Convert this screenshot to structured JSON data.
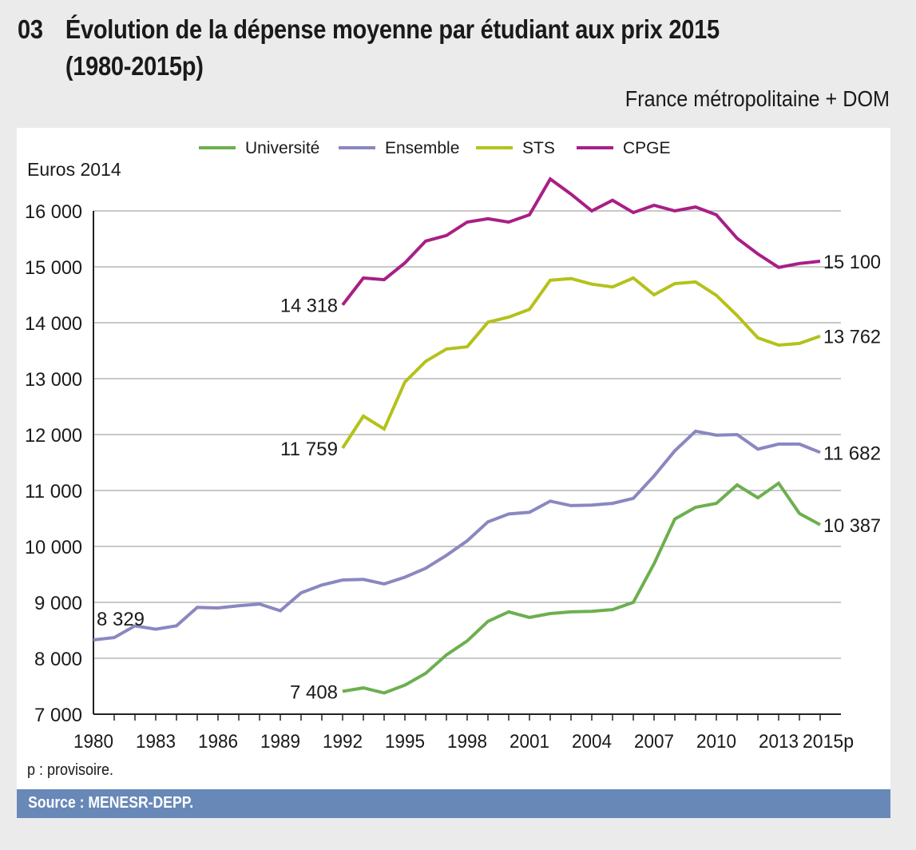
{
  "header": {
    "figure_number": "03",
    "title_line1": "Évolution de la dépense moyenne par étudiant aux prix 2015",
    "title_line2": "(1980-2015p)",
    "subtitle": "France métropolitaine + DOM"
  },
  "footer": {
    "note": "p : provisoire.",
    "source": "Source : MENESR-DEPP."
  },
  "chart_data": {
    "type": "line",
    "title": "Évolution de la dépense moyenne par étudiant aux prix 2015 (1980-2015p)",
    "ylabel": "Euros 2014",
    "xlabel": "",
    "ylim": [
      7000,
      16000
    ],
    "yticks": [
      7000,
      8000,
      9000,
      10000,
      11000,
      12000,
      13000,
      14000,
      15000,
      16000
    ],
    "ytick_labels": [
      "7 000",
      "8 000",
      "9 000",
      "10 000",
      "11 000",
      "12 000",
      "13 000",
      "14 000",
      "15 000",
      "16 000"
    ],
    "xlim": [
      1980,
      2016.5
    ],
    "xtick_labels": [
      {
        "x": 1980,
        "label": "1980"
      },
      {
        "x": 1983,
        "label": "1983"
      },
      {
        "x": 1986,
        "label": "1986"
      },
      {
        "x": 1989,
        "label": "1989"
      },
      {
        "x": 1992,
        "label": "1992"
      },
      {
        "x": 1995,
        "label": "1995"
      },
      {
        "x": 1998,
        "label": "1998"
      },
      {
        "x": 2001,
        "label": "2001"
      },
      {
        "x": 2004,
        "label": "2004"
      },
      {
        "x": 2007,
        "label": "2007"
      },
      {
        "x": 2010,
        "label": "2010"
      },
      {
        "x": 2013,
        "label": "2013"
      },
      {
        "x": 2015,
        "label": "2015p"
      }
    ],
    "grid": true,
    "legend_position": "top-center",
    "series": [
      {
        "name": "Université",
        "color": "#6daf4f",
        "start_year": 1992,
        "values": [
          7408,
          7470,
          7380,
          7520,
          7730,
          8060,
          8310,
          8660,
          8830,
          8730,
          8800,
          8830,
          8840,
          8870,
          9000,
          9690,
          10490,
          10700,
          10770,
          11100,
          10870,
          11130,
          10590,
          10387
        ],
        "start_label": "7 408",
        "end_label": "10 387"
      },
      {
        "name": "Ensemble",
        "color": "#8a87c0",
        "start_year": 1980,
        "values": [
          8329,
          8370,
          8580,
          8520,
          8580,
          8910,
          8900,
          8940,
          8970,
          8850,
          9170,
          9310,
          9400,
          9410,
          9330,
          9450,
          9610,
          9840,
          10100,
          10440,
          10580,
          10610,
          10810,
          10730,
          10740,
          10770,
          10860,
          11260,
          11710,
          12060,
          11990,
          12000,
          11740,
          11830,
          11830,
          11682
        ],
        "start_label": "8 329",
        "end_label": "11 682"
      },
      {
        "name": "STS",
        "color": "#b4c21a",
        "start_year": 1992,
        "values": [
          11759,
          12330,
          12100,
          12940,
          13310,
          13530,
          13570,
          14010,
          14100,
          14240,
          14760,
          14790,
          14690,
          14640,
          14800,
          14500,
          14700,
          14730,
          14490,
          14130,
          13730,
          13600,
          13630,
          13762
        ],
        "start_label": "11 759",
        "end_label": "13 762"
      },
      {
        "name": "CPGE",
        "color": "#a81f86",
        "start_year": 1992,
        "values": [
          14318,
          14800,
          14770,
          15070,
          15460,
          15560,
          15800,
          15860,
          15800,
          15930,
          16570,
          16300,
          16000,
          16190,
          15970,
          16100,
          16000,
          16070,
          15930,
          15510,
          15230,
          14990,
          15060,
          15100
        ],
        "start_label": "14 318",
        "end_label": "15 100"
      }
    ]
  }
}
